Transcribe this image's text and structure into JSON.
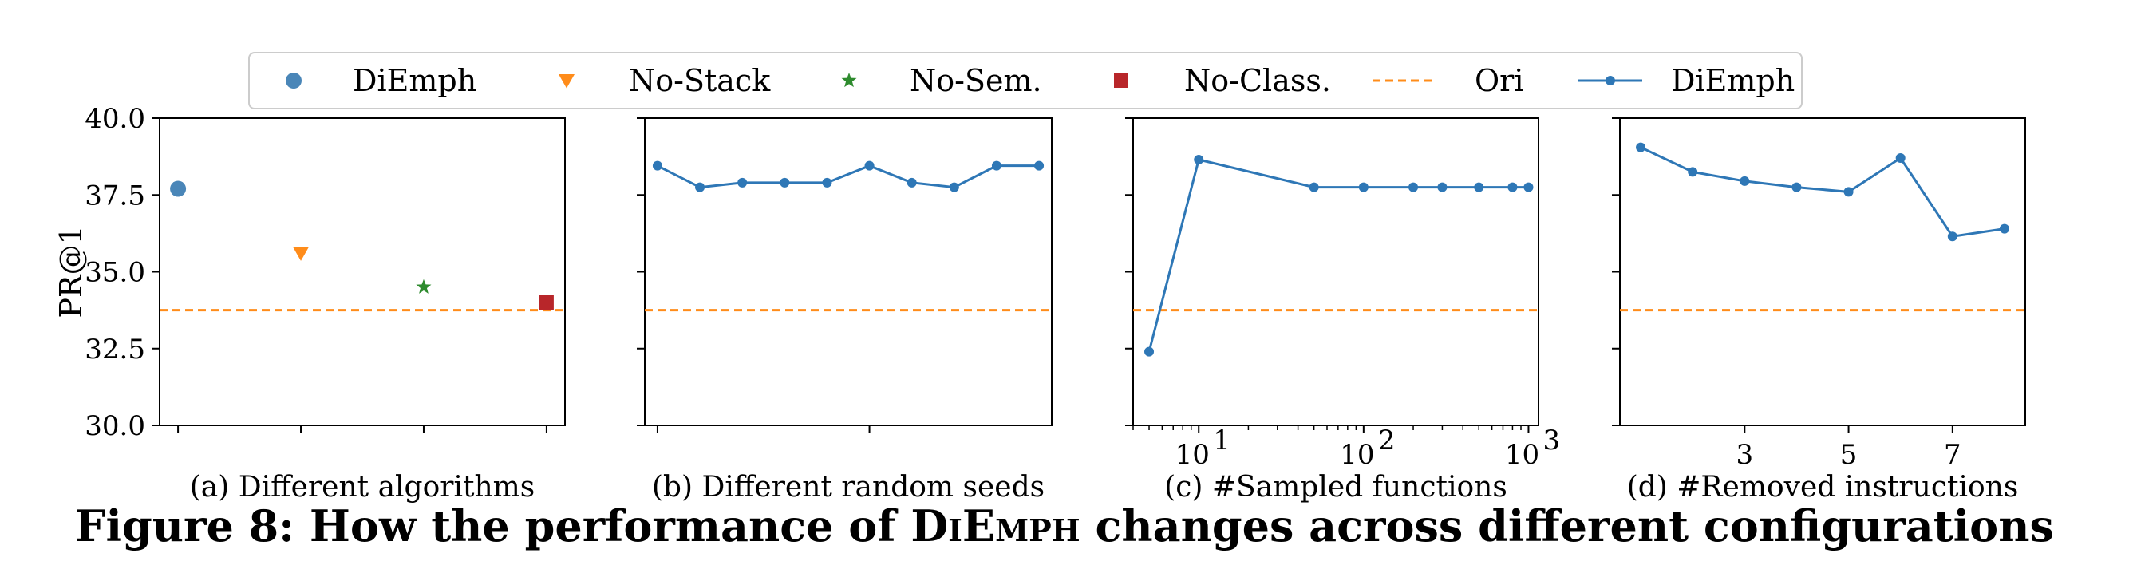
{
  "colors": {
    "diemph": "#4a86b8",
    "line": "#2e77b6",
    "no_stack": "#ff8c1a",
    "no_sem": "#2e8b2e",
    "no_class": "#b8262a",
    "ori": "#ff8c1a",
    "axis": "#000000",
    "background": "#ffffff"
  },
  "legend": {
    "placement": "top-center",
    "items": [
      {
        "label": "DiEmph",
        "marker": "circle",
        "color": "#4a86b8"
      },
      {
        "label": "No-Stack",
        "marker": "triangle-down",
        "color": "#ff8c1a"
      },
      {
        "label": "No-Sem.",
        "marker": "star",
        "color": "#2e8b2e"
      },
      {
        "label": "No-Class.",
        "marker": "square",
        "color": "#b8262a"
      },
      {
        "label": "Ori",
        "marker": "dashed-line",
        "color": "#ff8c1a"
      },
      {
        "label": "DiEmph",
        "marker": "line-dot",
        "color": "#2e77b6"
      }
    ]
  },
  "caption": {
    "prefix": "Figure 8: How the performance of ",
    "name": "DiEmph",
    "suffix": " changes across different configurations"
  },
  "chart_data": [
    {
      "type": "scatter",
      "subtitle": "(a) Different algorithms",
      "ylabel": "PR@1",
      "ylim": [
        30.0,
        40.0
      ],
      "yticks": [
        "30.0",
        "32.5",
        "35.0",
        "37.5",
        "40.0"
      ],
      "xlim": [
        -0.15,
        3.15
      ],
      "xticks": [
        0,
        1,
        2,
        3
      ],
      "xtick_labels": [],
      "reference_line": {
        "name": "Ori",
        "y": 33.75,
        "style": "dashed"
      },
      "points": [
        {
          "name": "DiEmph",
          "x": 0,
          "y": 37.7,
          "marker": "circle"
        },
        {
          "name": "No-Stack",
          "x": 1,
          "y": 35.6,
          "marker": "triangle-down"
        },
        {
          "name": "No-Sem.",
          "x": 2,
          "y": 34.5,
          "marker": "star"
        },
        {
          "name": "No-Class.",
          "x": 3,
          "y": 34.0,
          "marker": "square"
        }
      ]
    },
    {
      "type": "line",
      "subtitle": "(b) Different random seeds",
      "ylim": [
        30.0,
        40.0
      ],
      "xlim": [
        -0.3,
        9.3
      ],
      "xticks": [
        0,
        5
      ],
      "xtick_labels": [],
      "reference_line": {
        "name": "Ori",
        "y": 33.75,
        "style": "dashed"
      },
      "series": [
        {
          "name": "DiEmph",
          "x": [
            0,
            1,
            2,
            3,
            4,
            5,
            6,
            7,
            8,
            9
          ],
          "values": [
            38.45,
            37.75,
            37.9,
            37.9,
            37.9,
            38.45,
            37.9,
            37.75,
            38.45,
            38.45
          ]
        }
      ]
    },
    {
      "type": "line",
      "subtitle": "(c) #Sampled functions",
      "xscale": "log",
      "ylim": [
        30.0,
        40.0
      ],
      "xlim": [
        4,
        1150
      ],
      "xticks": [
        10,
        100,
        1000
      ],
      "xtick_labels": [
        "10",
        "10",
        "10"
      ],
      "xtick_exponents": [
        "1",
        "2",
        "3"
      ],
      "reference_line": {
        "name": "Ori",
        "y": 33.75,
        "style": "dashed"
      },
      "series": [
        {
          "name": "DiEmph",
          "x": [
            5,
            10,
            50,
            100,
            200,
            300,
            500,
            800,
            1000
          ],
          "values": [
            32.4,
            38.65,
            37.75,
            37.75,
            37.75,
            37.75,
            37.75,
            37.75,
            37.75
          ]
        }
      ]
    },
    {
      "type": "line",
      "subtitle": "(d) #Removed instructions",
      "ylim": [
        30.0,
        40.0
      ],
      "xlim": [
        0.6,
        8.4
      ],
      "xticks": [
        3,
        5,
        7
      ],
      "xtick_labels": [
        "3",
        "5",
        "7"
      ],
      "reference_line": {
        "name": "Ori",
        "y": 33.75,
        "style": "dashed"
      },
      "series": [
        {
          "name": "DiEmph",
          "x": [
            1,
            2,
            3,
            4,
            5,
            6,
            7,
            8
          ],
          "values": [
            39.05,
            38.25,
            37.95,
            37.75,
            37.6,
            38.7,
            36.15,
            36.4
          ]
        }
      ]
    }
  ]
}
